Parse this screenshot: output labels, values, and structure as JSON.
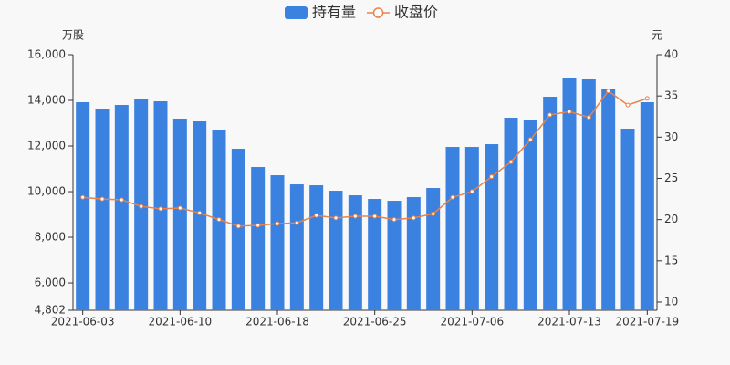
{
  "chart_data": {
    "type": "bar-line",
    "categories": [
      "2021-06-03",
      null,
      null,
      null,
      null,
      "2021-06-10",
      null,
      null,
      null,
      null,
      "2021-06-18",
      null,
      null,
      null,
      null,
      "2021-06-25",
      null,
      null,
      null,
      null,
      "2021-07-06",
      null,
      null,
      null,
      null,
      "2021-07-13",
      null,
      null,
      null,
      "2021-07-19"
    ],
    "y_label": "万股",
    "y2_label": "元",
    "ylim": [
      4802,
      16000
    ],
    "yticks": [
      {
        "value": 4802,
        "label": "4,802"
      },
      {
        "value": 6000,
        "label": "6,000"
      },
      {
        "value": 8000,
        "label": "8,000"
      },
      {
        "value": 10000,
        "label": "10,000"
      },
      {
        "value": 12000,
        "label": "12,000"
      },
      {
        "value": 14000,
        "label": "14,000"
      },
      {
        "value": 16000,
        "label": "16,000"
      }
    ],
    "y2lim": [
      9,
      40
    ],
    "y2ticks": [
      10,
      15,
      20,
      25,
      30,
      35,
      40
    ],
    "grid": false,
    "legend": "top",
    "series": [
      {
        "name": "持有量",
        "kind": "bar",
        "color": "#3b82e0",
        "values": [
          13920,
          13640,
          13800,
          14080,
          13960,
          13200,
          13080,
          12720,
          11880,
          11080,
          10720,
          10320,
          10280,
          10040,
          9840,
          9680,
          9600,
          9760,
          10160,
          11960,
          11960,
          12080,
          13240,
          13160,
          14160,
          15000,
          14920,
          14520,
          12760,
          13920
        ]
      },
      {
        "name": "收盘价",
        "kind": "line",
        "axis": "y2",
        "color": "#e8824a",
        "values": [
          22.7,
          22.5,
          22.4,
          21.6,
          21.3,
          21.4,
          20.8,
          20.0,
          19.2,
          19.3,
          19.5,
          19.6,
          20.5,
          20.2,
          20.4,
          20.4,
          20.0,
          20.2,
          20.7,
          22.7,
          23.4,
          25.2,
          27.0,
          29.7,
          32.7,
          33.1,
          32.4,
          35.6,
          33.9,
          34.7
        ]
      }
    ]
  }
}
